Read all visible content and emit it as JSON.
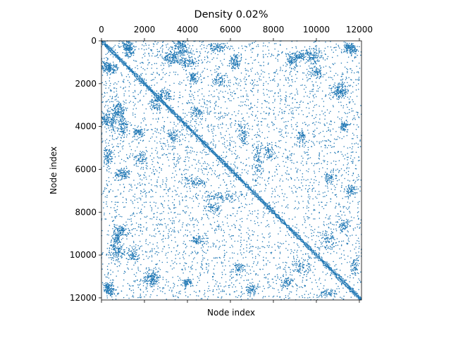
{
  "chart_data": {
    "type": "scatter",
    "subtype": "sparsity-pattern (spy plot of adjacency matrix)",
    "title": "Density 0.02%",
    "xlabel": "Node index",
    "ylabel": "Node index",
    "xlim": [
      0,
      12100
    ],
    "ylim": [
      12100,
      0
    ],
    "x_ticks": [
      "0",
      "2000",
      "4000",
      "6000",
      "8000",
      "10000",
      "12000"
    ],
    "y_ticks": [
      "0",
      "2000",
      "4000",
      "6000",
      "8000",
      "10000",
      "12000"
    ],
    "x_tick_values": [
      0,
      2000,
      4000,
      6000,
      8000,
      10000,
      12000
    ],
    "y_tick_values": [
      0,
      2000,
      4000,
      6000,
      8000,
      10000,
      12000
    ],
    "x_axis_position": "top",
    "grid": false,
    "marker_color": "#1f77b4",
    "diagonal": {
      "from": 0,
      "to": 12100
    },
    "clusters": [
      [
        1200,
        200,
        350,
        350,
        90
      ],
      [
        500,
        1300,
        400,
        400,
        80
      ],
      [
        800,
        3200,
        500,
        600,
        140
      ],
      [
        200,
        3700,
        400,
        500,
        80
      ],
      [
        1700,
        4300,
        400,
        300,
        60
      ],
      [
        300,
        5400,
        350,
        600,
        90
      ],
      [
        1000,
        6200,
        500,
        400,
        90
      ],
      [
        900,
        8900,
        500,
        400,
        90
      ],
      [
        700,
        9800,
        600,
        700,
        120
      ],
      [
        300,
        11500,
        300,
        300,
        60
      ],
      [
        2400,
        11000,
        500,
        500,
        80
      ],
      [
        4000,
        1000,
        700,
        300,
        90
      ],
      [
        3800,
        500,
        600,
        300,
        70
      ],
      [
        6600,
        4300,
        300,
        900,
        80
      ],
      [
        7300,
        5500,
        300,
        1500,
        100
      ],
      [
        5200,
        7800,
        500,
        400,
        60
      ],
      [
        9300,
        4500,
        400,
        500,
        70
      ],
      [
        10000,
        1500,
        500,
        500,
        70
      ],
      [
        11200,
        2300,
        400,
        600,
        80
      ],
      [
        11300,
        4000,
        300,
        400,
        60
      ],
      [
        11600,
        7000,
        400,
        600,
        80
      ],
      [
        11700,
        400,
        400,
        400,
        70
      ],
      [
        10600,
        9300,
        500,
        700,
        80
      ],
      [
        8600,
        11300,
        500,
        400,
        70
      ],
      [
        6400,
        10600,
        500,
        400,
        60
      ],
      [
        4400,
        3300,
        500,
        400,
        70
      ],
      [
        3000,
        2500,
        400,
        400,
        70
      ],
      [
        9200,
        700,
        500,
        300,
        60
      ],
      [
        11800,
        10500,
        300,
        600,
        60
      ],
      [
        5500,
        1800,
        500,
        500,
        60
      ]
    ],
    "background_points": 2400
  }
}
